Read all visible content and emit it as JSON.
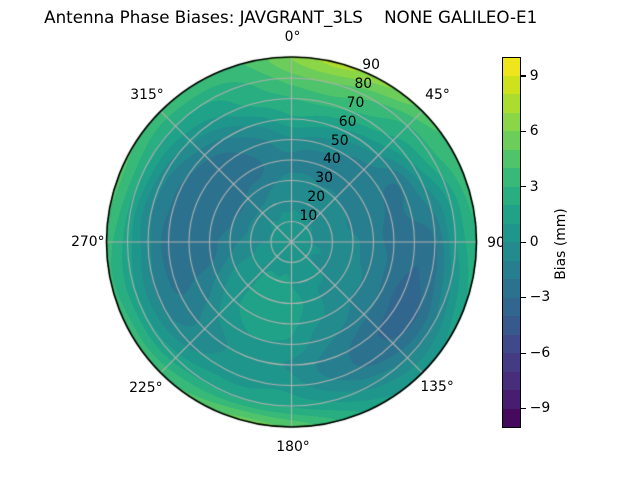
{
  "title": "Antenna Phase Biases: JAVGRANT_3LS    NONE GALILEO-E1",
  "chart_data": {
    "type": "polar_contour",
    "orientation": {
      "theta_zero": "top",
      "theta_direction": "clockwise"
    },
    "azimuth_deg": [
      0,
      15,
      30,
      45,
      60,
      75,
      90,
      105,
      120,
      135,
      150,
      165,
      180,
      195,
      210,
      225,
      240,
      255,
      270,
      285,
      300,
      315,
      330,
      345
    ],
    "zenith_deg": [
      0,
      10,
      20,
      30,
      40,
      50,
      60,
      70,
      80,
      90
    ],
    "bias_mm": [
      [
        0.4,
        0.2,
        -0.2,
        -0.7,
        -1.3,
        -0.1,
        1.6,
        3.0,
        4.6,
        6.1
      ],
      [
        0.4,
        0.2,
        -0.3,
        -0.8,
        -1.4,
        -0.5,
        1.4,
        3.4,
        4.9,
        7.4
      ],
      [
        0.4,
        0.1,
        -0.3,
        -0.9,
        -1.5,
        -0.9,
        0.7,
        2.6,
        4.2,
        6.3
      ],
      [
        0.4,
        0.1,
        -0.4,
        -1.0,
        -1.5,
        -1.4,
        0.0,
        1.8,
        3.0,
        4.6
      ],
      [
        0.4,
        0.1,
        -0.4,
        -1.0,
        -1.5,
        -1.9,
        -1.7,
        0.6,
        2.5,
        3.8
      ],
      [
        0.4,
        0.0,
        -0.4,
        -1.0,
        -1.5,
        -2.1,
        -1.9,
        -0.8,
        1.3,
        3.4
      ],
      [
        0.4,
        0.0,
        -0.3,
        -0.9,
        -1.5,
        -2.3,
        -2.7,
        -2.0,
        0.8,
        2.8
      ],
      [
        0.4,
        0.1,
        -0.3,
        -0.7,
        -1.3,
        -2.3,
        -3.0,
        -2.6,
        0.0,
        2.2
      ],
      [
        0.4,
        0.1,
        -0.2,
        -0.6,
        -1.1,
        -2.1,
        -3.4,
        -3.1,
        -0.9,
        1.1
      ],
      [
        0.4,
        0.2,
        -0.1,
        -0.4,
        -0.9,
        -1.8,
        -3.0,
        -2.8,
        -1.1,
        0.7
      ],
      [
        0.4,
        0.3,
        0.2,
        0.0,
        -0.4,
        -1.1,
        -2.2,
        -2.0,
        -0.3,
        1.3
      ],
      [
        0.4,
        0.5,
        0.6,
        0.7,
        0.4,
        -0.4,
        -1.2,
        -0.8,
        0.8,
        2.9
      ],
      [
        0.4,
        0.6,
        1.0,
        1.3,
        1.3,
        0.6,
        -0.1,
        0.5,
        1.9,
        4.8
      ],
      [
        0.4,
        0.7,
        1.2,
        1.6,
        1.7,
        1.0,
        0.2,
        0.7,
        2.0,
        5.2
      ],
      [
        0.4,
        0.7,
        1.1,
        1.4,
        1.4,
        0.8,
        0.0,
        0.6,
        1.8,
        4.4
      ],
      [
        0.4,
        0.6,
        0.8,
        0.9,
        0.6,
        0.0,
        -0.7,
        -0.3,
        1.5,
        3.8
      ],
      [
        0.4,
        0.4,
        0.4,
        0.2,
        -0.4,
        -1.4,
        -1.8,
        -1.0,
        1.2,
        3.4
      ],
      [
        0.4,
        0.2,
        0.0,
        -0.7,
        -1.9,
        -2.4,
        -2.2,
        -1.0,
        1.2,
        3.2
      ],
      [
        0.4,
        0.1,
        -0.4,
        -1.5,
        -2.3,
        -2.7,
        -2.5,
        -0.8,
        1.5,
        3.3
      ],
      [
        0.4,
        0.1,
        -0.8,
        -1.9,
        -2.6,
        -2.8,
        -2.3,
        -0.8,
        1.8,
        4.2
      ],
      [
        0.4,
        0.1,
        -0.8,
        -2.1,
        -2.8,
        -2.8,
        -2.0,
        -0.4,
        2.0,
        4.1
      ],
      [
        0.4,
        0.2,
        -0.7,
        -1.9,
        -2.8,
        -2.7,
        -1.6,
        0.2,
        2.0,
        3.6
      ],
      [
        0.4,
        0.2,
        -0.6,
        -1.6,
        -2.4,
        -2.1,
        -0.8,
        1.0,
        2.2,
        3.6
      ],
      [
        0.4,
        0.2,
        -0.3,
        -1.0,
        -1.7,
        -1.1,
        0.4,
        2.2,
        3.0,
        4.0
      ]
    ],
    "value_range": [
      -10,
      10
    ],
    "level_step": 1,
    "band_colors": [
      "#460a5d",
      "#481c6e",
      "#472d7b",
      "#443b84",
      "#3e4a89",
      "#38598c",
      "#31668e",
      "#2c728e",
      "#277e8e",
      "#238a8d",
      "#1f968b",
      "#1fa287",
      "#28ae80",
      "#38b977",
      "#50c46a",
      "#6ccd5a",
      "#8bd646",
      "#addc30",
      "#cde11d",
      "#efe51c"
    ],
    "theta_ticks": [
      {
        "angle": 0,
        "label": "0°"
      },
      {
        "angle": 45,
        "label": "45°"
      },
      {
        "angle": 90,
        "label": "90"
      },
      {
        "angle": 135,
        "label": "135°"
      },
      {
        "angle": 180,
        "label": "180°"
      },
      {
        "angle": 225,
        "label": "225°"
      },
      {
        "angle": 270,
        "label": "270°"
      },
      {
        "angle": 315,
        "label": "315°"
      }
    ],
    "radial_ticks": [
      {
        "r": 10,
        "label": "10"
      },
      {
        "r": 20,
        "label": "20"
      },
      {
        "r": 30,
        "label": "30"
      },
      {
        "r": 40,
        "label": "40"
      },
      {
        "r": 50,
        "label": "50"
      },
      {
        "r": 60,
        "label": "60"
      },
      {
        "r": 70,
        "label": "70"
      },
      {
        "r": 80,
        "label": "80"
      },
      {
        "r": 90,
        "label": "90"
      }
    ],
    "radial_label_angle_deg": 22.5,
    "radial_max": 90,
    "grid": {
      "color": "#b0b0b0",
      "ring_step": 10,
      "spoke_step_deg": 45
    },
    "outline_color": "#000000",
    "background": "#ffffff",
    "colorbar": {
      "label": "Bias (mm)",
      "ticks": [
        {
          "value": -9,
          "label": "−9"
        },
        {
          "value": -6,
          "label": "−6"
        },
        {
          "value": -3,
          "label": "−3"
        },
        {
          "value": 0,
          "label": "0"
        },
        {
          "value": 3,
          "label": "3"
        },
        {
          "value": 6,
          "label": "6"
        },
        {
          "value": 9,
          "label": "9"
        }
      ]
    }
  }
}
